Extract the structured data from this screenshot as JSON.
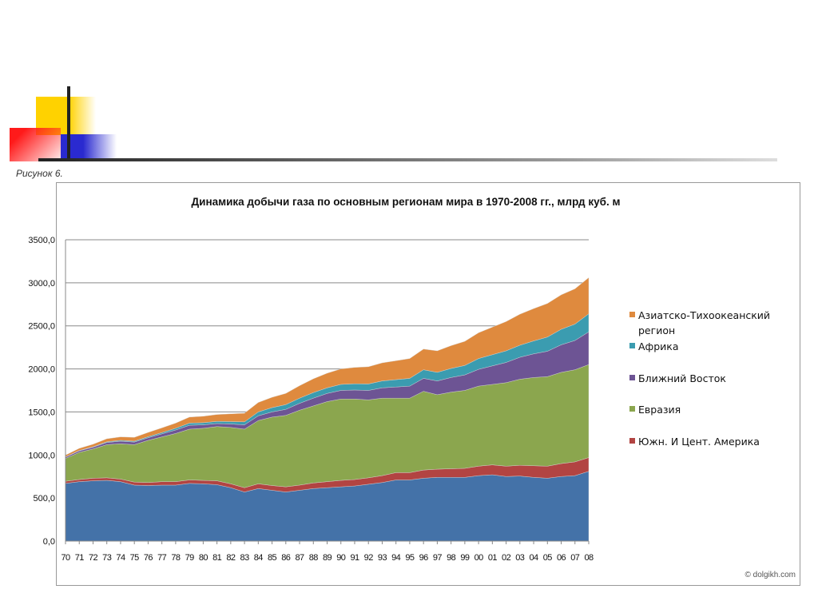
{
  "caption": "Рисунок 6.",
  "watermark": "© dolgikh.com",
  "chart_data": {
    "type": "area",
    "stacked": true,
    "title": "Динамика добычи газа по основным регионам мира в 1970-2008  гг., млрд куб. м",
    "xlabel": "",
    "ylabel": "",
    "ylim": [
      0,
      3500
    ],
    "yticks": [
      "0,0",
      "500,0",
      "1000,0",
      "1500,0",
      "2000,0",
      "2500,0",
      "3000,0",
      "3500,0"
    ],
    "grid": true,
    "legend_position": "right",
    "categories": [
      "70",
      "71",
      "72",
      "73",
      "74",
      "75",
      "76",
      "77",
      "78",
      "79",
      "80",
      "81",
      "82",
      "83",
      "84",
      "85",
      "86",
      "87",
      "88",
      "89",
      "90",
      "91",
      "92",
      "93",
      "94",
      "95",
      "96",
      "97",
      "98",
      "99",
      "00",
      "01",
      "02",
      "03",
      "04",
      "05",
      "06",
      "07",
      "08"
    ],
    "series": [
      {
        "name": "",
        "color": "#4472a8",
        "values": [
          670,
          690,
          700,
          705,
          690,
          650,
          645,
          650,
          650,
          670,
          665,
          655,
          620,
          570,
          610,
          590,
          570,
          590,
          610,
          620,
          630,
          640,
          660,
          680,
          710,
          710,
          730,
          740,
          740,
          740,
          760,
          770,
          750,
          755,
          740,
          730,
          750,
          760,
          810
        ]
      },
      {
        "name": "Южн. И Цент. Америка",
        "color": "#b24442",
        "values": [
          25,
          25,
          30,
          30,
          30,
          35,
          35,
          40,
          40,
          40,
          40,
          45,
          45,
          50,
          55,
          55,
          60,
          60,
          65,
          70,
          75,
          75,
          75,
          80,
          85,
          85,
          95,
          95,
          100,
          105,
          110,
          115,
          120,
          125,
          135,
          140,
          150,
          160,
          160
        ]
      },
      {
        "name": "Евразия",
        "color": "#8ba64e",
        "values": [
          265,
          315,
          340,
          385,
          410,
          435,
          490,
          520,
          560,
          590,
          605,
          630,
          655,
          680,
          735,
          795,
          830,
          870,
          895,
          930,
          945,
          935,
          905,
          900,
          865,
          865,
          915,
          865,
          890,
          905,
          930,
          935,
          970,
          1000,
          1025,
          1040,
          1060,
          1070,
          1080
        ]
      },
      {
        "name": "Ближний Восток",
        "color": "#6d5494",
        "values": [
          15,
          18,
          20,
          25,
          30,
          30,
          30,
          35,
          40,
          45,
          40,
          35,
          40,
          50,
          55,
          60,
          70,
          80,
          90,
          95,
          100,
          105,
          110,
          120,
          130,
          140,
          150,
          160,
          170,
          180,
          195,
          215,
          235,
          255,
          275,
          295,
          320,
          340,
          380
        ]
      },
      {
        "name": "Африка",
        "color": "#3b9cb0",
        "values": [
          3,
          4,
          5,
          8,
          10,
          10,
          12,
          15,
          20,
          25,
          25,
          25,
          28,
          35,
          45,
          50,
          55,
          60,
          65,
          65,
          70,
          72,
          75,
          80,
          85,
          90,
          100,
          100,
          105,
          110,
          125,
          130,
          135,
          140,
          150,
          165,
          180,
          190,
          210
        ]
      },
      {
        "name": "Азиатско-Тихоокеанский регион",
        "color": "#df8a3e",
        "values": [
          20,
          25,
          30,
          35,
          40,
          45,
          50,
          55,
          60,
          70,
          75,
          80,
          90,
          100,
          110,
          120,
          130,
          145,
          160,
          170,
          180,
          190,
          200,
          210,
          220,
          230,
          240,
          250,
          265,
          280,
          300,
          320,
          340,
          360,
          375,
          390,
          400,
          410,
          420
        ]
      }
    ]
  }
}
